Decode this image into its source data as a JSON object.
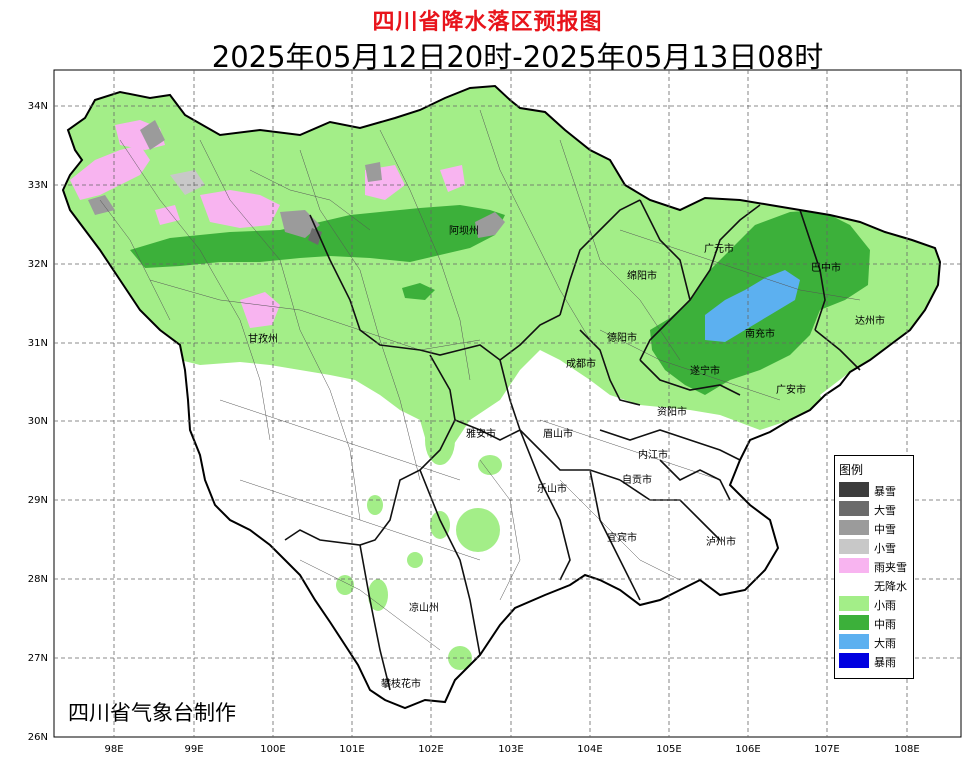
{
  "title": "四川省降水落区预报图",
  "subtitle": "2025年05月12日20时-2025年05月13日08时",
  "credit": "四川省气象台制作",
  "legend": {
    "title": "图例",
    "items": [
      {
        "label": "暴雪",
        "color": "#3c3c3c"
      },
      {
        "label": "大雪",
        "color": "#6b6b6b"
      },
      {
        "label": "中雪",
        "color": "#9b9b9b"
      },
      {
        "label": "小雪",
        "color": "#c8c8c8"
      },
      {
        "label": "雨夹雪",
        "color": "#f8b4f0"
      },
      {
        "label": "无降水",
        "color": "#ffffff"
      },
      {
        "label": "小雨",
        "color": "#a3ee88"
      },
      {
        "label": "中雨",
        "color": "#3cb03a"
      },
      {
        "label": "大雨",
        "color": "#5cb0f0"
      },
      {
        "label": "暴雨",
        "color": "#0000e0"
      }
    ]
  },
  "axes": {
    "lat_labels": [
      "34N",
      "33N",
      "32N",
      "31N",
      "30N",
      "29N",
      "28N",
      "27N",
      "26N"
    ],
    "lon_labels": [
      "98E",
      "99E",
      "100E",
      "101E",
      "102E",
      "103E",
      "104E",
      "105E",
      "106E",
      "107E",
      "108E"
    ]
  },
  "cities": [
    {
      "name": "阿坝州"
    },
    {
      "name": "甘孜州"
    },
    {
      "name": "绵阳市"
    },
    {
      "name": "广元市"
    },
    {
      "name": "巴中市"
    },
    {
      "name": "达州市"
    },
    {
      "name": "德阳市"
    },
    {
      "name": "南充市"
    },
    {
      "name": "成都市"
    },
    {
      "name": "遂宁市"
    },
    {
      "name": "广安市"
    },
    {
      "name": "资阳市"
    },
    {
      "name": "雅安市"
    },
    {
      "name": "眉山市"
    },
    {
      "name": "内江市"
    },
    {
      "name": "乐山市"
    },
    {
      "name": "自贡市"
    },
    {
      "name": "宜宾市"
    },
    {
      "name": "泸州市"
    },
    {
      "name": "凉山州"
    },
    {
      "name": "攀枝花市"
    }
  ]
}
